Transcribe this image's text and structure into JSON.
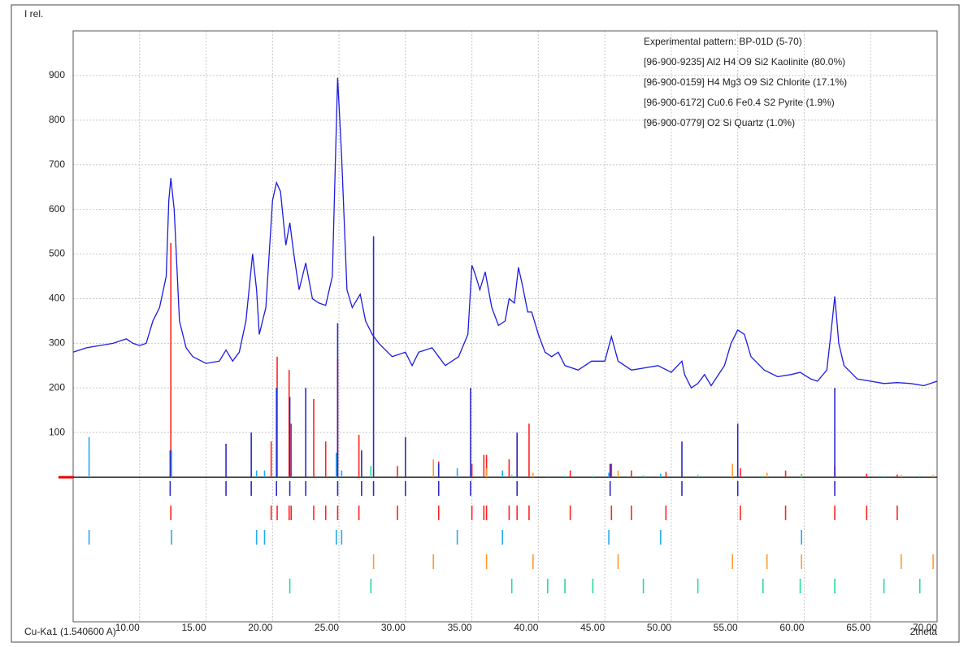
{
  "chart_data": {
    "type": "line",
    "y_axis_label": "I rel.",
    "x_axis_label": "2theta",
    "radiation_label": "Cu-Ka1 (1.540600 A)",
    "xlim": [
      5,
      70
    ],
    "ylim": [
      -324,
      1000
    ],
    "xticks": [
      {
        "value": 10,
        "label": "10.00"
      },
      {
        "value": 15,
        "label": "15.00"
      },
      {
        "value": 20,
        "label": "20.00"
      },
      {
        "value": 25,
        "label": "25.00"
      },
      {
        "value": 30,
        "label": "30.00"
      },
      {
        "value": 35,
        "label": "35.00"
      },
      {
        "value": 40,
        "label": "40.00"
      },
      {
        "value": 45,
        "label": "45.00"
      },
      {
        "value": 50,
        "label": "50.00"
      },
      {
        "value": 55,
        "label": "55.00"
      },
      {
        "value": 60,
        "label": "60.00"
      },
      {
        "value": 65,
        "label": "65.00"
      },
      {
        "value": 70,
        "label": "70.00"
      }
    ],
    "yticks": [
      100,
      200,
      300,
      400,
      500,
      600,
      700,
      800,
      900
    ],
    "grid": true,
    "legend": "top-right",
    "series": [
      {
        "name": "Experimental pattern: BP-01D (5-70)",
        "color": "#1c1ce0",
        "x": [
          5,
          6,
          7,
          8,
          9,
          9.5,
          10,
          10.5,
          11,
          11.5,
          12,
          12.2,
          12.35,
          12.6,
          13,
          13.5,
          14,
          15,
          16,
          16.5,
          17,
          17.5,
          18,
          18.5,
          18.8,
          19,
          19.5,
          20,
          20.3,
          20.6,
          21,
          21.3,
          21.6,
          22,
          22.5,
          23,
          23.5,
          24,
          24.5,
          24.9,
          25.2,
          25.6,
          26,
          26.6,
          27,
          27.5,
          28,
          29,
          30,
          30.5,
          31,
          32,
          32.5,
          33,
          34,
          34.7,
          35,
          35.3,
          35.6,
          36,
          36.5,
          37,
          37.5,
          37.8,
          38.2,
          38.5,
          38.8,
          39.2,
          39.5,
          40,
          40.5,
          41,
          41.5,
          42,
          43,
          44,
          45,
          45.5,
          46,
          47,
          48,
          49,
          50,
          50.8,
          51,
          51.5,
          52,
          52.5,
          53,
          54,
          54.5,
          55,
          55.5,
          56,
          57,
          58,
          59,
          59.7,
          60.5,
          61,
          61.7,
          62,
          62.3,
          62.6,
          63,
          64,
          65,
          66,
          67,
          68,
          69,
          70
        ],
        "values": [
          280,
          290,
          295,
          300,
          310,
          300,
          295,
          300,
          350,
          380,
          450,
          620,
          670,
          600,
          350,
          290,
          270,
          255,
          260,
          285,
          260,
          280,
          350,
          500,
          420,
          320,
          380,
          620,
          660,
          640,
          520,
          570,
          500,
          420,
          480,
          400,
          390,
          385,
          450,
          895,
          720,
          420,
          380,
          410,
          350,
          320,
          300,
          270,
          280,
          250,
          280,
          290,
          270,
          250,
          270,
          320,
          475,
          450,
          420,
          460,
          380,
          340,
          350,
          400,
          390,
          470,
          430,
          370,
          370,
          320,
          280,
          270,
          280,
          250,
          240,
          260,
          260,
          315,
          260,
          240,
          245,
          250,
          235,
          260,
          230,
          200,
          210,
          230,
          205,
          250,
          300,
          330,
          320,
          270,
          240,
          225,
          230,
          235,
          220,
          215,
          240,
          320,
          405,
          300,
          250,
          220,
          215,
          210,
          212,
          210,
          205,
          215
        ]
      },
      {
        "name": "[96-900-9235] Al2 H4 O9 Si2  Kaolinite (80.0%)",
        "color": "#ff2222",
        "x": [
          12.35,
          19.9,
          20.35,
          21.25,
          21.4,
          23.1,
          24.0,
          24.9,
          26.5,
          29.4,
          32.5,
          35.0,
          35.9,
          36.1,
          37.8,
          38.4,
          39.3,
          42.4,
          45.5,
          47.0,
          49.6,
          55.2,
          58.6,
          62.3,
          64.7,
          67.0
        ],
        "values": [
          525,
          80,
          270,
          240,
          120,
          175,
          80,
          265,
          95,
          25,
          35,
          30,
          50,
          50,
          40,
          95,
          120,
          15,
          30,
          15,
          12,
          20,
          15,
          25,
          8,
          6
        ]
      },
      {
        "name": "[96-900-0159] H4 Mg3 O9 Si2  Chlorite (17.1%)",
        "color": "#22aaf0",
        "x": [
          6.2,
          12.4,
          18.8,
          19.4,
          24.8,
          25.2,
          33.9,
          37.3,
          45.3,
          49.2,
          59.8
        ],
        "values": [
          90,
          60,
          15,
          15,
          55,
          15,
          20,
          15,
          10,
          8,
          6
        ]
      },
      {
        "name": "[96-900-6172] Cu0.6 Fe0.4 S2  Pyrite (1.9%)",
        "color": "#ff9933",
        "x": [
          27.6,
          32.1,
          36.1,
          39.6,
          46.0,
          54.6,
          57.2,
          59.8,
          67.3,
          69.7
        ],
        "values": [
          15,
          40,
          20,
          10,
          15,
          30,
          10,
          8,
          5,
          5
        ]
      },
      {
        "name": "[96-900-0779] O2 Si  Quartz (1.0%)",
        "color": "#22dd99",
        "x": [
          21.3,
          27.4,
          38.0,
          40.7,
          42.0,
          44.1,
          47.9,
          52.0,
          56.9,
          59.7,
          62.3,
          66.0,
          68.7
        ],
        "values": [
          5,
          25,
          5,
          3,
          3,
          3,
          4,
          5,
          3,
          3,
          4,
          3,
          3
        ]
      }
    ],
    "peaks": {
      "color": "#2a2ac8",
      "x": [
        12.3,
        16.5,
        18.4,
        20.3,
        21.3,
        22.5,
        24.9,
        26.7,
        27.6,
        30.0,
        32.5,
        34.9,
        38.4,
        45.4,
        50.8,
        55.0,
        62.3
      ],
      "values": [
        60,
        75,
        100,
        200,
        180,
        200,
        345,
        60,
        540,
        90,
        30,
        200,
        100,
        30,
        80,
        120,
        200
      ]
    }
  }
}
